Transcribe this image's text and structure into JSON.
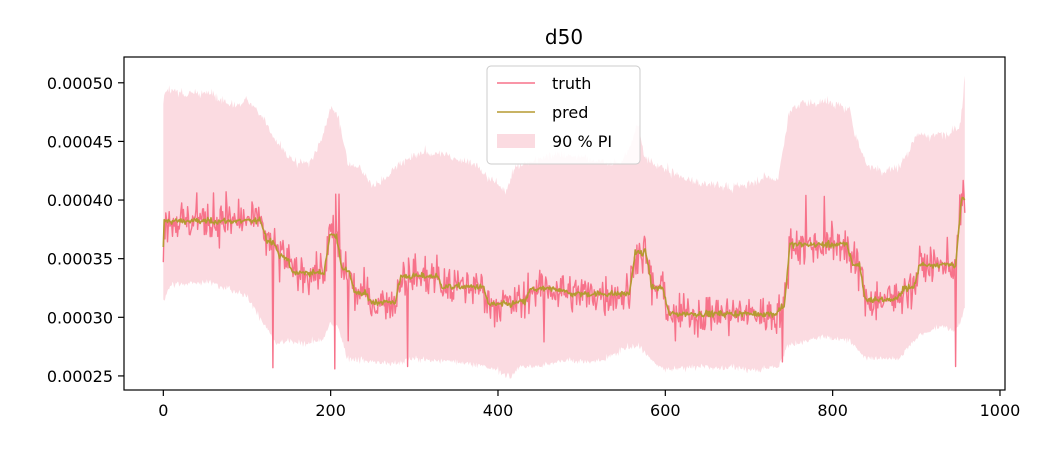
{
  "chart_data": {
    "type": "line",
    "title": "d50",
    "xlabel": "",
    "ylabel": "",
    "xlim": [
      -47,
      1006
    ],
    "ylim": [
      0.000238,
      0.000522
    ],
    "x_ticks": [
      0,
      200,
      400,
      600,
      800,
      1000
    ],
    "x_tick_labels": [
      "0",
      "200",
      "400",
      "600",
      "800",
      "1000"
    ],
    "y_ticks": [
      0.00025,
      0.0003,
      0.00035,
      0.0004,
      0.00045,
      0.0005
    ],
    "y_tick_labels": [
      "0.00025",
      "0.00030",
      "0.00035",
      "0.00040",
      "0.00045",
      "0.00050"
    ],
    "grid": false,
    "legend": {
      "placement": "upper center",
      "entries": [
        {
          "label": "truth",
          "kind": "line",
          "color": "#f7728a"
        },
        {
          "label": "pred",
          "kind": "line",
          "color": "#b59a31"
        },
        {
          "label": "90 % PI",
          "kind": "band",
          "color": "#fbdbe1"
        }
      ]
    },
    "colors": {
      "truth": "#f7728a",
      "pred": "#b59a31",
      "band": "#fbdbe1"
    },
    "pred_segments": [
      {
        "x": [
          0,
          120
        ],
        "level": 0.000382
      },
      {
        "x": [
          120,
          135
        ],
        "level": 0.000365
      },
      {
        "x": [
          135,
          150
        ],
        "level": 0.000352
      },
      {
        "x": [
          150,
          195
        ],
        "level": 0.000338
      },
      {
        "x": [
          195,
          210
        ],
        "level": 0.00037
      },
      {
        "x": [
          210,
          225
        ],
        "level": 0.00034
      },
      {
        "x": [
          225,
          245
        ],
        "level": 0.00032
      },
      {
        "x": [
          245,
          280
        ],
        "level": 0.000313
      },
      {
        "x": [
          280,
          330
        ],
        "level": 0.000335
      },
      {
        "x": [
          330,
          385
        ],
        "level": 0.000326
      },
      {
        "x": [
          385,
          420
        ],
        "level": 0.000311
      },
      {
        "x": [
          420,
          435
        ],
        "level": 0.000313
      },
      {
        "x": [
          435,
          480
        ],
        "level": 0.000324
      },
      {
        "x": [
          480,
          560
        ],
        "level": 0.00032
      },
      {
        "x": [
          560,
          580
        ],
        "level": 0.000355
      },
      {
        "x": [
          580,
          600
        ],
        "level": 0.000325
      },
      {
        "x": [
          600,
          735
        ],
        "level": 0.000303
      },
      {
        "x": [
          735,
          745
        ],
        "level": 0.000309
      },
      {
        "x": [
          745,
          820
        ],
        "level": 0.000362
      },
      {
        "x": [
          820,
          835
        ],
        "level": 0.000345
      },
      {
        "x": [
          835,
          880
        ],
        "level": 0.000315
      },
      {
        "x": [
          880,
          900
        ],
        "level": 0.000325
      },
      {
        "x": [
          900,
          950
        ],
        "level": 0.000345
      },
      {
        "x": [
          950,
          958
        ],
        "level": 0.0004
      }
    ],
    "pred_start": 0.00036,
    "band_upper": [
      [
        0,
        0.000487
      ],
      [
        5,
        0.000494
      ],
      [
        20,
        0.000494
      ],
      [
        25,
        0.000489
      ],
      [
        40,
        0.000492
      ],
      [
        60,
        0.00049
      ],
      [
        80,
        0.000481
      ],
      [
        100,
        0.000485
      ],
      [
        120,
        0.00047
      ],
      [
        130,
        0.000455
      ],
      [
        145,
        0.00044
      ],
      [
        160,
        0.00043
      ],
      [
        175,
        0.000432
      ],
      [
        190,
        0.000452
      ],
      [
        200,
        0.00048
      ],
      [
        210,
        0.00047
      ],
      [
        220,
        0.000432
      ],
      [
        235,
        0.000428
      ],
      [
        250,
        0.000412
      ],
      [
        265,
        0.000418
      ],
      [
        280,
        0.00043
      ],
      [
        310,
        0.000441
      ],
      [
        340,
        0.000438
      ],
      [
        370,
        0.000432
      ],
      [
        390,
        0.000418
      ],
      [
        410,
        0.000408
      ],
      [
        420,
        0.000427
      ],
      [
        430,
        0.00043
      ],
      [
        470,
        0.00044
      ],
      [
        510,
        0.000435
      ],
      [
        545,
        0.00043
      ],
      [
        555,
        0.000441
      ],
      [
        568,
        0.000465
      ],
      [
        575,
        0.000435
      ],
      [
        595,
        0.000428
      ],
      [
        620,
        0.00042
      ],
      [
        640,
        0.000414
      ],
      [
        660,
        0.000413
      ],
      [
        680,
        0.00041
      ],
      [
        700,
        0.000414
      ],
      [
        720,
        0.00042
      ],
      [
        735,
        0.000418
      ],
      [
        748,
        0.000475
      ],
      [
        760,
        0.000482
      ],
      [
        790,
        0.000484
      ],
      [
        820,
        0.000477
      ],
      [
        832,
        0.000445
      ],
      [
        842,
        0.00043
      ],
      [
        860,
        0.000425
      ],
      [
        880,
        0.000428
      ],
      [
        900,
        0.000455
      ],
      [
        930,
        0.000455
      ],
      [
        948,
        0.00046
      ],
      [
        953,
        0.000465
      ],
      [
        958,
        0.000507
      ]
    ],
    "band_lower": [
      [
        0,
        0.000313
      ],
      [
        10,
        0.000328
      ],
      [
        60,
        0.00033
      ],
      [
        100,
        0.000318
      ],
      [
        120,
        0.000295
      ],
      [
        135,
        0.000277
      ],
      [
        150,
        0.00028
      ],
      [
        160,
        0.000278
      ],
      [
        190,
        0.00028
      ],
      [
        200,
        0.000295
      ],
      [
        210,
        0.00029
      ],
      [
        220,
        0.000265
      ],
      [
        250,
        0.000262
      ],
      [
        270,
        0.00026
      ],
      [
        300,
        0.000265
      ],
      [
        320,
        0.000263
      ],
      [
        340,
        0.000263
      ],
      [
        370,
        0.00026
      ],
      [
        400,
        0.000255
      ],
      [
        415,
        0.000249
      ],
      [
        425,
        0.000258
      ],
      [
        440,
        0.000258
      ],
      [
        480,
        0.000263
      ],
      [
        520,
        0.000262
      ],
      [
        555,
        0.000275
      ],
      [
        570,
        0.000275
      ],
      [
        585,
        0.000262
      ],
      [
        600,
        0.000255
      ],
      [
        640,
        0.000258
      ],
      [
        680,
        0.000257
      ],
      [
        710,
        0.000255
      ],
      [
        735,
        0.000258
      ],
      [
        745,
        0.000275
      ],
      [
        790,
        0.000284
      ],
      [
        820,
        0.00028
      ],
      [
        840,
        0.000265
      ],
      [
        880,
        0.000265
      ],
      [
        900,
        0.000283
      ],
      [
        930,
        0.000293
      ],
      [
        950,
        0.00029
      ],
      [
        958,
        0.00031
      ]
    ],
    "truth_note": "truth is a noisy series scattered around pred with occasional spikes",
    "truth_noise_sd": 1.4e-05,
    "truth_spikes": [
      [
        131,
        0.000257
      ],
      [
        205,
        0.000256
      ],
      [
        221,
        0.00028
      ],
      [
        292,
        0.000258
      ],
      [
        455,
        0.000279
      ],
      [
        612,
        0.00028
      ],
      [
        740,
        0.000262
      ],
      [
        947,
        0.000258
      ],
      [
        40,
        0.000406
      ],
      [
        60,
        0.000406
      ],
      [
        75,
        0.000407
      ],
      [
        206,
        0.000405
      ],
      [
        210,
        0.000405
      ],
      [
        768,
        0.000404
      ],
      [
        790,
        0.000403
      ]
    ],
    "truth_end": 0.000389
  }
}
